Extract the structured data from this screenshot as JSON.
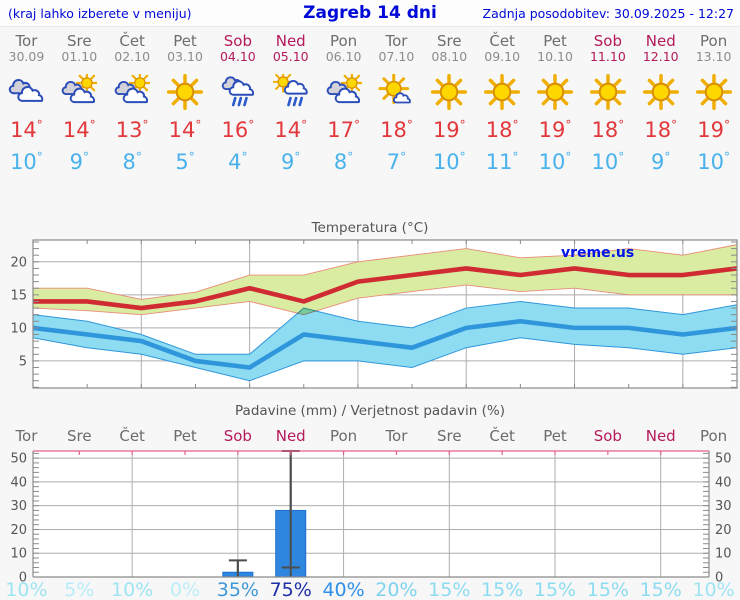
{
  "header": {
    "left_note": "(kraj lahko izberete v meniju)",
    "title": "Zagreb 14 dni",
    "updated": "Zadnja posodobitev: 30.09.2025 - 12:27"
  },
  "units": {
    "degree": "°"
  },
  "colors": {
    "header_blue": "#0008d8",
    "weekend": "#b5195b",
    "weekday": "#6e6e6e",
    "date_gray": "#8c8c8c",
    "tmax_red": "#e2383c",
    "tmin_blue": "#49b2ec",
    "chart_red_line": "#d02b33",
    "chart_red_band": "#d9eca1",
    "chart_red_band_edge": "#e98c79",
    "chart_blue_line": "#2f96dc",
    "chart_blue_band": "#8edcf2",
    "bar_blue": "#2e86df",
    "bar_edge": "#1f6fd0",
    "whisker": "#4d4d4d",
    "pink_axis": "#e4608a",
    "grid": "#adadad",
    "spine": "#8a8a8a",
    "axis_text": "#555555",
    "watermark_blue": "#0013e8"
  },
  "days": [
    {
      "name": "Tor",
      "date": "30.09",
      "weekend": false,
      "icon": "cloudy",
      "tmax": 14,
      "tmin": 10
    },
    {
      "name": "Sre",
      "date": "01.10",
      "weekend": false,
      "icon": "sun-cloud",
      "tmax": 14,
      "tmin": 9
    },
    {
      "name": "Čet",
      "date": "02.10",
      "weekend": false,
      "icon": "sun-cloud",
      "tmax": 13,
      "tmin": 8
    },
    {
      "name": "Pet",
      "date": "03.10",
      "weekend": false,
      "icon": "sun",
      "tmax": 14,
      "tmin": 5
    },
    {
      "name": "Sob",
      "date": "04.10",
      "weekend": true,
      "icon": "rain",
      "tmax": 16,
      "tmin": 4
    },
    {
      "name": "Ned",
      "date": "05.10",
      "weekend": true,
      "icon": "sun-rain",
      "tmax": 14,
      "tmin": 9
    },
    {
      "name": "Pon",
      "date": "06.10",
      "weekend": false,
      "icon": "sun-cloud",
      "tmax": 17,
      "tmin": 8
    },
    {
      "name": "Tor",
      "date": "07.10",
      "weekend": false,
      "icon": "sun-small-cloud",
      "tmax": 18,
      "tmin": 7
    },
    {
      "name": "Sre",
      "date": "08.10",
      "weekend": false,
      "icon": "sun",
      "tmax": 19,
      "tmin": 10
    },
    {
      "name": "Čet",
      "date": "09.10",
      "weekend": false,
      "icon": "sun",
      "tmax": 18,
      "tmin": 11
    },
    {
      "name": "Pet",
      "date": "10.10",
      "weekend": false,
      "icon": "sun",
      "tmax": 19,
      "tmin": 10
    },
    {
      "name": "Sob",
      "date": "11.10",
      "weekend": true,
      "icon": "sun",
      "tmax": 18,
      "tmin": 10
    },
    {
      "name": "Ned",
      "date": "12.10",
      "weekend": true,
      "icon": "sun",
      "tmax": 18,
      "tmin": 9
    },
    {
      "name": "Pon",
      "date": "13.10",
      "weekend": false,
      "icon": "sun",
      "tmax": 19,
      "tmin": 10
    }
  ],
  "chart_data": [
    {
      "type": "line",
      "title": "Temperatura (°C)",
      "watermark": "vreme.us",
      "x_labels": [
        "Tor",
        "Sre",
        "Čet",
        "Pet",
        "Sob",
        "Ned",
        "Pon",
        "Tor",
        "Sre",
        "Čet",
        "Pet",
        "Sob",
        "Ned",
        "Pon"
      ],
      "ylim": [
        0.9,
        23.3
      ],
      "yticks": [
        5,
        10,
        15,
        20
      ],
      "grid": true,
      "series": [
        {
          "name": "max_temp",
          "color": "#d02b33",
          "values": [
            14,
            14,
            13,
            14,
            16,
            14,
            17,
            18,
            19,
            18,
            19,
            18,
            18,
            19
          ]
        },
        {
          "name": "min_temp",
          "color": "#2f96dc",
          "values": [
            10,
            9,
            8,
            5,
            4,
            9,
            8,
            7,
            10,
            11,
            10,
            10,
            9,
            10
          ]
        }
      ],
      "bands": [
        {
          "name": "max_temp_range",
          "fill": "#d9eca1",
          "edge": "#e98c79",
          "upper": [
            16,
            16,
            14.3,
            15.4,
            18,
            18,
            20,
            21,
            22,
            20.6,
            21,
            22,
            21,
            22.6
          ],
          "lower": [
            13,
            12.6,
            12,
            13,
            14,
            12,
            14.5,
            15.5,
            16.5,
            15.5,
            16,
            15,
            15,
            15
          ]
        },
        {
          "name": "min_temp_range",
          "fill": "#8edcf2",
          "edge": "#2f96dc",
          "upper": [
            12,
            11,
            9,
            6,
            6,
            13,
            11,
            10,
            13,
            14,
            13,
            13,
            12,
            13.5
          ],
          "lower": [
            8.5,
            7,
            6,
            4,
            2,
            5,
            5,
            4,
            7,
            8.5,
            7.5,
            7,
            6,
            7
          ]
        }
      ]
    },
    {
      "type": "bar",
      "title": "Padavine (mm) / Verjetnost padavin (%)",
      "categories": [
        "Tor",
        "Sre",
        "Čet",
        "Pet",
        "Sob",
        "Ned",
        "Pon",
        "Tor",
        "Sre",
        "Čet",
        "Pet",
        "Sob",
        "Ned",
        "Pon"
      ],
      "weekend": [
        false,
        false,
        false,
        false,
        true,
        true,
        false,
        false,
        false,
        false,
        false,
        true,
        true,
        false
      ],
      "ylim": [
        0,
        53
      ],
      "yticks": [
        0,
        10,
        20,
        30,
        40,
        50
      ],
      "precip_mm": [
        0,
        0,
        0,
        0,
        2,
        28,
        0,
        0,
        0,
        0,
        0,
        0,
        0,
        0
      ],
      "precip_range_mm": [
        [
          0,
          0
        ],
        [
          0,
          0
        ],
        [
          0,
          0
        ],
        [
          0,
          0
        ],
        [
          0,
          7
        ],
        [
          4,
          53
        ],
        [
          0,
          0
        ],
        [
          0,
          0
        ],
        [
          0,
          0
        ],
        [
          0,
          0
        ],
        [
          0,
          0
        ],
        [
          0,
          0
        ],
        [
          0,
          0
        ],
        [
          0,
          0
        ]
      ],
      "probability_labels": [
        "10%",
        "5%",
        "10%",
        "0%",
        "35%",
        "75%",
        "40%",
        "20%",
        "15%",
        "15%",
        "15%",
        "15%",
        "15%",
        "10%"
      ],
      "probability_pct": [
        10,
        5,
        10,
        0,
        35,
        75,
        40,
        20,
        15,
        15,
        15,
        15,
        15,
        10
      ],
      "probability_colors": [
        "#9fe4f3",
        "#b7ecf8",
        "#9fe4f3",
        "#bceef8",
        "#3f98d6",
        "#1d2fa8",
        "#2e8ee9",
        "#7ed2ee",
        "#8cdcf1",
        "#8cdcf1",
        "#8cdcf1",
        "#8cdcf1",
        "#8cdcf1",
        "#9fe4f3"
      ]
    }
  ]
}
